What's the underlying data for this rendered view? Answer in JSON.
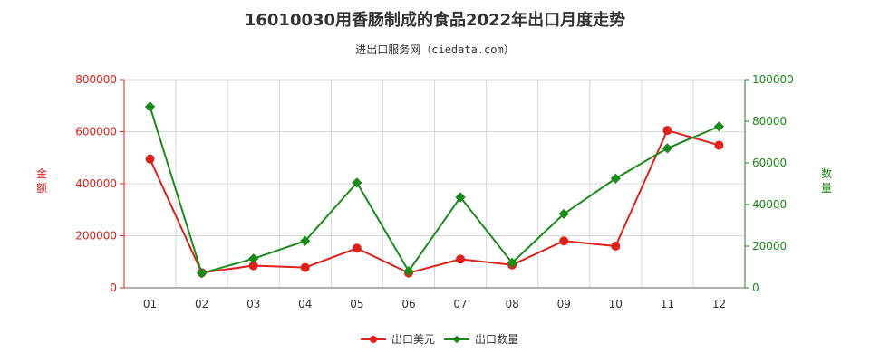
{
  "chart_data": {
    "type": "line",
    "title": "16010030用香肠制成的食品2022年出口月度走势",
    "subtitle": "进出口服务网（ciedata.com）",
    "categories": [
      "01",
      "02",
      "03",
      "04",
      "05",
      "06",
      "07",
      "08",
      "09",
      "10",
      "11",
      "12"
    ],
    "y_left": {
      "label": "金额",
      "ylim": [
        0,
        800000
      ],
      "ticks": [
        "0",
        "200000",
        "400000",
        "600000",
        "800000"
      ],
      "color": "#e0201a"
    },
    "y_right": {
      "label": "数量",
      "ylim": [
        0,
        100000
      ],
      "ticks": [
        "0",
        "20000",
        "40000",
        "60000",
        "80000",
        "100000"
      ],
      "color": "#1a8a1a"
    },
    "series": [
      {
        "name": "出口美元",
        "axis": "left",
        "color": "#e0201a",
        "values": [
          495000,
          58000,
          85000,
          78000,
          152000,
          57000,
          110000,
          88000,
          180000,
          160000,
          605000,
          548000
        ]
      },
      {
        "name": "出口数量",
        "axis": "right",
        "color": "#1a8a1a",
        "values": [
          87000,
          7000,
          14000,
          22500,
          50500,
          8000,
          43500,
          12000,
          35500,
          52500,
          67000,
          77500
        ]
      }
    ],
    "grid": true,
    "legend": "bottom-center"
  }
}
